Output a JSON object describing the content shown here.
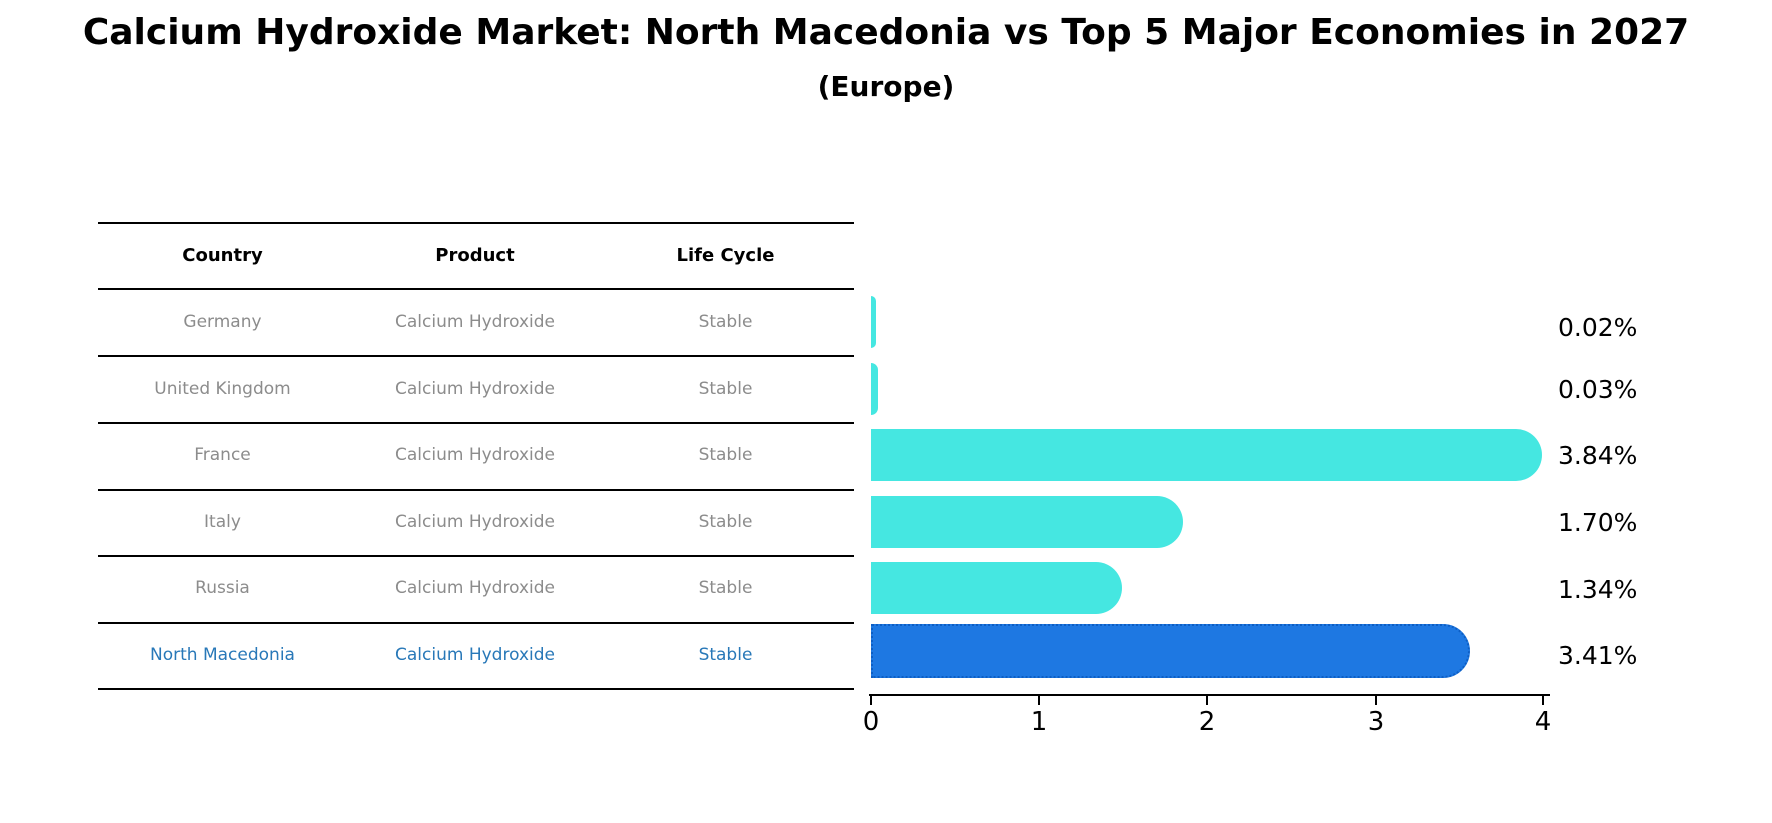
{
  "table": {
    "headers": [
      "Country",
      "Product",
      "Life Cycle"
    ],
    "rows": [
      {
        "country": "Germany",
        "product": "Calcium Hydroxide",
        "life_cycle": "Stable",
        "highlighted": false
      },
      {
        "country": "United Kingdom",
        "product": "Calcium Hydroxide",
        "life_cycle": "Stable",
        "highlighted": false
      },
      {
        "country": "France",
        "product": "Calcium Hydroxide",
        "life_cycle": "Stable",
        "highlighted": false
      },
      {
        "country": "Italy",
        "product": "Calcium Hydroxide",
        "life_cycle": "Stable",
        "highlighted": false
      },
      {
        "country": "Russia",
        "product": "Calcium Hydroxide",
        "life_cycle": "Stable",
        "highlighted": false
      },
      {
        "country": "North Macedonia",
        "product": "Calcium Hydroxide",
        "life_cycle": "Stable",
        "highlighted": true
      }
    ]
  },
  "chart_data": {
    "type": "bar",
    "orientation": "horizontal",
    "title": "Calcium Hydroxide Market: North Macedonia vs Top 5 Major Economies in 2027",
    "subtitle": "(Europe)",
    "categories": [
      "Germany",
      "United Kingdom",
      "France",
      "Italy",
      "Russia",
      "North Macedonia"
    ],
    "values": [
      0.02,
      0.03,
      3.84,
      1.7,
      1.34,
      3.41
    ],
    "value_labels": [
      "0.02%",
      "0.03%",
      "3.84%",
      "1.70%",
      "1.34%",
      "3.41%"
    ],
    "xlim": [
      0,
      4
    ],
    "xticks": [
      "0",
      "1",
      "2",
      "3",
      "4"
    ],
    "grid": false,
    "legend": "none",
    "highlight_index": 5,
    "colors": {
      "bar": "#45E7E1",
      "highlight_bar": "#1E78E2",
      "highlight_border": "#0D5EC4",
      "highlight_text": "#2878B8",
      "muted_text": "#8C8C8C",
      "text": "#000000"
    }
  }
}
